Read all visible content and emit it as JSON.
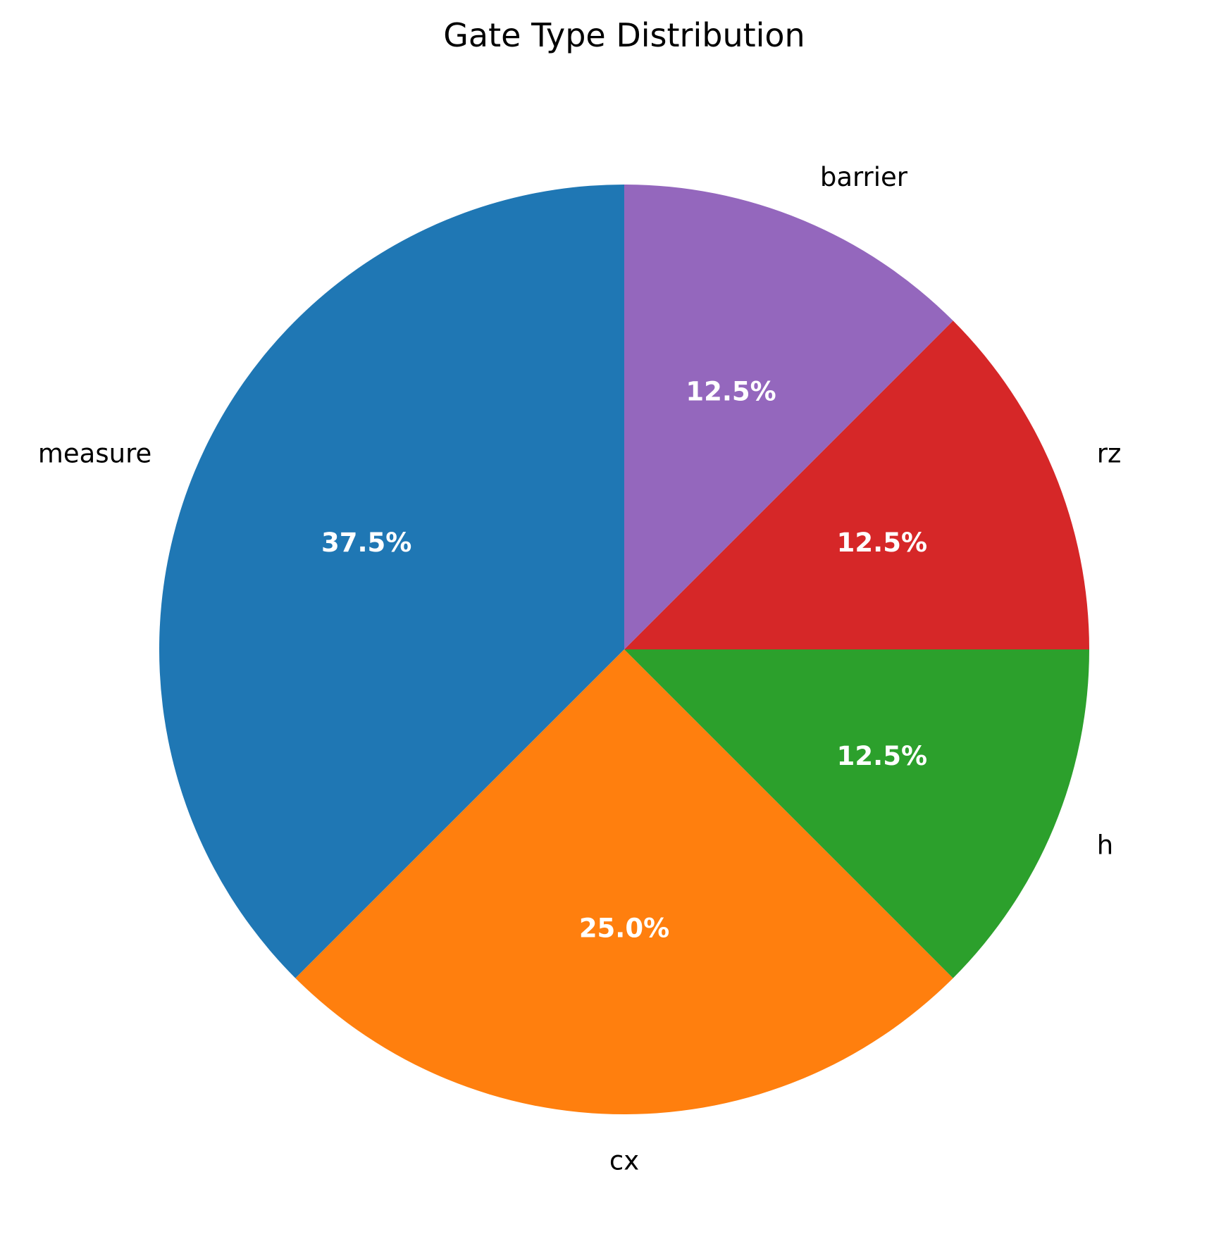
{
  "chart_data": {
    "type": "pie",
    "title": "Gate Type Distribution",
    "start_angle_deg": 90,
    "direction": "counterclockwise",
    "slices": [
      {
        "label": "measure",
        "value": 37.5,
        "pct_label": "37.5%",
        "color": "#1f77b4"
      },
      {
        "label": "cx",
        "value": 25.0,
        "pct_label": "25.0%",
        "color": "#ff7f0e"
      },
      {
        "label": "h",
        "value": 12.5,
        "pct_label": "12.5%",
        "color": "#2ca02c"
      },
      {
        "label": "rz",
        "value": 12.5,
        "pct_label": "12.5%",
        "color": "#d62728"
      },
      {
        "label": "barrier",
        "value": 12.5,
        "pct_label": "12.5%",
        "color": "#9467bd"
      }
    ]
  }
}
